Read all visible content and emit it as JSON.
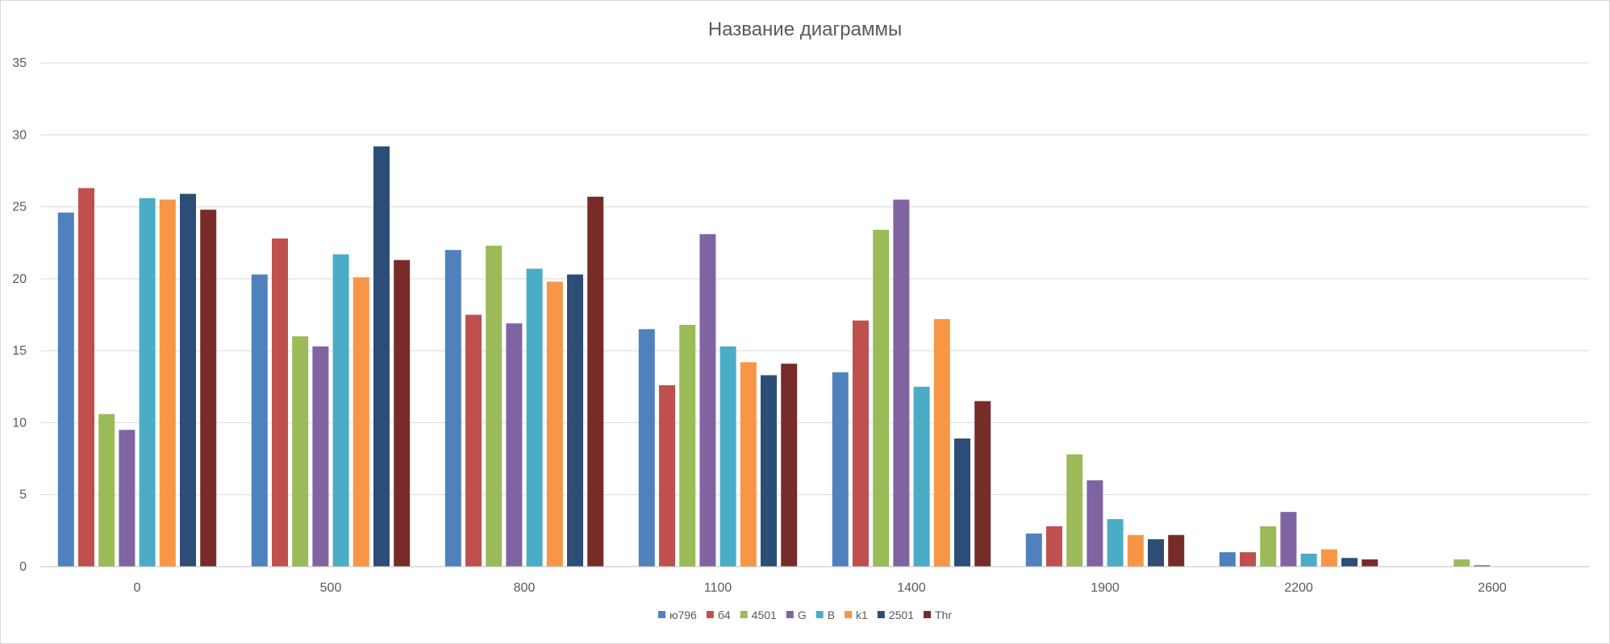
{
  "chart_data": {
    "type": "bar",
    "title": "Название диаграммы",
    "xlabel": "",
    "ylabel": "",
    "ylim": [
      0,
      35
    ],
    "yticks": [
      0,
      5,
      10,
      15,
      20,
      25,
      30,
      35
    ],
    "grid": true,
    "legend_position": "bottom",
    "categories": [
      "0",
      "500",
      "800",
      "1100",
      "1400",
      "1900",
      "2200",
      "2600"
    ],
    "series": [
      {
        "name": "ю796",
        "color": "#4f81bd",
        "values": [
          24.6,
          20.3,
          22.0,
          16.5,
          13.5,
          2.3,
          1.0,
          0.0
        ]
      },
      {
        "name": "б4",
        "color": "#c0504d",
        "values": [
          26.3,
          22.8,
          17.5,
          12.6,
          17.1,
          2.8,
          1.0,
          0.0
        ]
      },
      {
        "name": "4501",
        "color": "#9bbb59",
        "values": [
          10.6,
          16.0,
          22.3,
          16.8,
          23.4,
          7.8,
          2.8,
          0.5
        ]
      },
      {
        "name": "G",
        "color": "#8064a2",
        "values": [
          9.5,
          15.3,
          16.9,
          23.1,
          25.5,
          6.0,
          3.8,
          0.1
        ]
      },
      {
        "name": "B",
        "color": "#4bacc6",
        "values": [
          25.6,
          21.7,
          20.7,
          15.3,
          12.5,
          3.3,
          0.9,
          0.0
        ]
      },
      {
        "name": "k1",
        "color": "#f79646",
        "values": [
          25.5,
          20.1,
          19.8,
          14.2,
          17.2,
          2.2,
          1.2,
          0.0
        ]
      },
      {
        "name": "2501",
        "color": "#2c4d75",
        "values": [
          25.9,
          29.2,
          20.3,
          13.3,
          8.9,
          1.9,
          0.6,
          0.0
        ]
      },
      {
        "name": "Thr",
        "color": "#772c2a",
        "values": [
          24.8,
          21.3,
          25.7,
          14.1,
          11.5,
          2.2,
          0.5,
          0.0
        ]
      }
    ]
  }
}
